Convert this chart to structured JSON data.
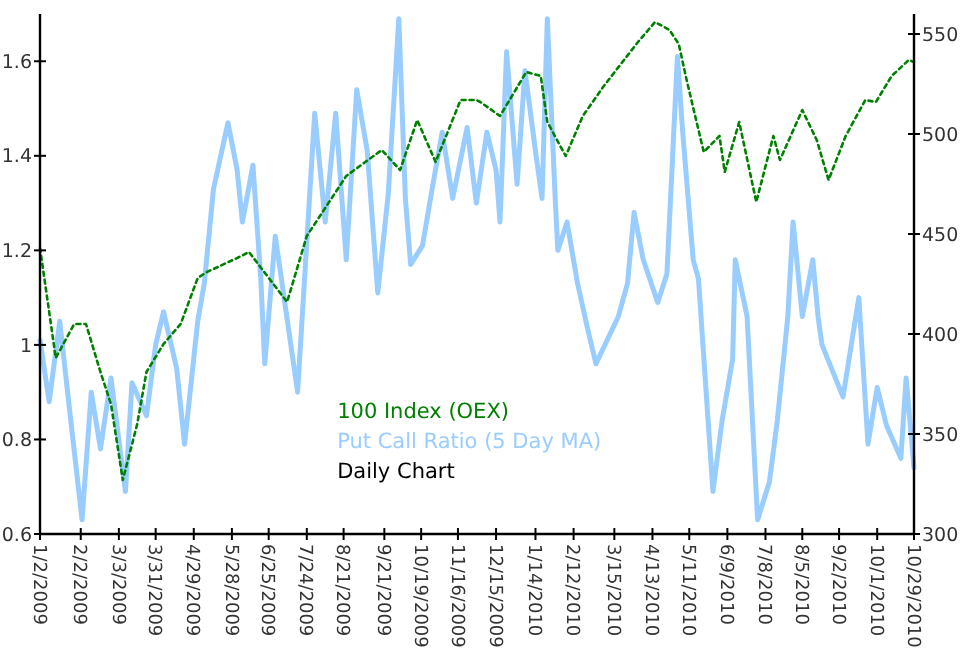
{
  "chart_data": {
    "type": "line",
    "legend": "bottom",
    "annotations": [
      "Daily Chart"
    ],
    "xlim": [
      "2009-01-02",
      "2010-10-29"
    ],
    "xticks": [
      {
        "value": "2009-01-02",
        "label": "1/2/2009"
      },
      {
        "value": "2009-02-02",
        "label": "2/2/2009"
      },
      {
        "value": "2009-03-03",
        "label": "3/3/2009"
      },
      {
        "value": "2009-03-31",
        "label": "3/31/2009"
      },
      {
        "value": "2009-04-29",
        "label": "4/29/2009"
      },
      {
        "value": "2009-05-28",
        "label": "5/28/2009"
      },
      {
        "value": "2009-06-25",
        "label": "6/25/2009"
      },
      {
        "value": "2009-07-24",
        "label": "7/24/2009"
      },
      {
        "value": "2009-08-21",
        "label": "8/21/2009"
      },
      {
        "value": "2009-09-21",
        "label": "9/21/2009"
      },
      {
        "value": "2009-10-19",
        "label": "10/19/2009"
      },
      {
        "value": "2009-11-16",
        "label": "11/16/2009"
      },
      {
        "value": "2009-12-15",
        "label": "12/15/2009"
      },
      {
        "value": "2010-01-14",
        "label": "1/14/2010"
      },
      {
        "value": "2010-02-12",
        "label": "2/12/2010"
      },
      {
        "value": "2010-03-15",
        "label": "3/15/2010"
      },
      {
        "value": "2010-04-13",
        "label": "4/13/2010"
      },
      {
        "value": "2010-05-11",
        "label": "5/11/2010"
      },
      {
        "value": "2010-06-09",
        "label": "6/9/2010"
      },
      {
        "value": "2010-07-08",
        "label": "7/8/2010"
      },
      {
        "value": "2010-08-05",
        "label": "8/5/2010"
      },
      {
        "value": "2010-09-02",
        "label": "9/2/2010"
      },
      {
        "value": "2010-10-01",
        "label": "10/1/2010"
      },
      {
        "value": "2010-10-29",
        "label": "10/29/2010"
      }
    ],
    "ylim": [
      0.6,
      1.7
    ],
    "yticks": [
      0.6,
      0.8,
      {
        "value": 1,
        "label": "1"
      },
      1.2,
      1.4,
      1.6
    ],
    "y2lim": [
      300,
      560
    ],
    "y2ticks": [
      300,
      350,
      400,
      450,
      500,
      550
    ],
    "series": [
      {
        "name": "Put Call Ratio (5 Day MA)",
        "color": "#99ccff",
        "line_style": "solid",
        "x": [
          "2009-01-02",
          "2009-01-09",
          "2009-01-17",
          "2009-01-25",
          "2009-02-03",
          "2009-02-10",
          "2009-02-17",
          "2009-02-25",
          "2009-03-08",
          "2009-03-13",
          "2009-03-24",
          "2009-03-31",
          "2009-04-06",
          "2009-04-16",
          "2009-04-22",
          "2009-05-02",
          "2009-05-07",
          "2009-05-14",
          "2009-05-25",
          "2009-06-01",
          "2009-06-05",
          "2009-06-13",
          "2009-06-19",
          "2009-06-22",
          "2009-06-30",
          "2009-07-17",
          "2009-07-30",
          "2009-08-07",
          "2009-08-15",
          "2009-08-23",
          "2009-08-31",
          "2009-09-08",
          "2009-09-16",
          "2009-09-24",
          "2009-10-02",
          "2009-10-07",
          "2009-10-11",
          "2009-10-20",
          "2009-10-28",
          "2009-11-04",
          "2009-11-12",
          "2009-11-23",
          "2009-11-30",
          "2009-12-08",
          "2009-12-15",
          "2009-12-18",
          "2009-12-23",
          "2009-12-31",
          "2010-01-06",
          "2010-01-14",
          "2010-01-19",
          "2010-01-23",
          "2010-01-29",
          "2010-01-31",
          "2010-02-07",
          "2010-02-15",
          "2010-02-23",
          "2010-03-01",
          "2010-03-18",
          "2010-03-25",
          "2010-03-30",
          "2010-04-06",
          "2010-04-17",
          "2010-04-24",
          "2010-05-02",
          "2010-05-06",
          "2010-05-14",
          "2010-05-18",
          "2010-05-29",
          "2010-06-05",
          "2010-06-13",
          "2010-06-15",
          "2010-06-24",
          "2010-07-02",
          "2010-07-11",
          "2010-07-17",
          "2010-07-25",
          "2010-07-29",
          "2010-08-05",
          "2010-08-13",
          "2010-08-17",
          "2010-08-20",
          "2010-09-05",
          "2010-09-17",
          "2010-09-24",
          "2010-10-01",
          "2010-10-08",
          "2010-10-19",
          "2010-10-23",
          "2010-10-29"
        ],
        "values": [
          1.01,
          0.88,
          1.05,
          0.85,
          0.63,
          0.9,
          0.78,
          0.93,
          0.69,
          0.92,
          0.85,
          1.0,
          1.07,
          0.95,
          0.79,
          1.05,
          1.13,
          1.33,
          1.47,
          1.37,
          1.26,
          1.38,
          1.14,
          0.96,
          1.23,
          0.9,
          1.49,
          1.26,
          1.49,
          1.18,
          1.54,
          1.41,
          1.11,
          1.32,
          1.69,
          1.31,
          1.17,
          1.21,
          1.34,
          1.45,
          1.31,
          1.46,
          1.3,
          1.45,
          1.37,
          1.26,
          1.62,
          1.34,
          1.58,
          1.41,
          1.31,
          1.69,
          1.31,
          1.2,
          1.26,
          1.13,
          1.03,
          0.96,
          1.06,
          1.13,
          1.28,
          1.18,
          1.09,
          1.15,
          1.61,
          1.45,
          1.18,
          1.14,
          0.69,
          0.84,
          0.97,
          1.18,
          1.06,
          0.63,
          0.71,
          0.84,
          1.06,
          1.26,
          1.06,
          1.18,
          1.06,
          1.0,
          0.89,
          1.1,
          0.79,
          0.91,
          0.83,
          0.76,
          0.93,
          0.74
        ]
      },
      {
        "name": "100 Index (OEX)",
        "color": "#008000",
        "axis": "y2",
        "line_style": "dotted",
        "x": [
          "2009-01-02",
          "2009-01-14",
          "2009-01-28",
          "2009-02-06",
          "2009-02-17",
          "2009-02-25",
          "2009-03-06",
          "2009-03-17",
          "2009-03-24",
          "2009-04-06",
          "2009-04-19",
          "2009-05-02",
          "2009-05-09",
          "2009-06-01",
          "2009-06-10",
          "2009-07-09",
          "2009-07-24",
          "2009-08-23",
          "2009-09-19",
          "2009-10-03",
          "2009-10-16",
          "2009-10-30",
          "2009-11-18",
          "2009-11-30",
          "2009-12-03",
          "2009-12-18",
          "2010-01-07",
          "2010-01-18",
          "2010-01-23",
          "2010-02-06",
          "2010-02-19",
          "2010-03-07",
          "2010-04-02",
          "2010-04-15",
          "2010-04-26",
          "2010-05-03",
          "2010-05-09",
          "2010-05-22",
          "2010-06-03",
          "2010-06-07",
          "2010-06-18",
          "2010-07-01",
          "2010-07-14",
          "2010-07-19",
          "2010-08-05",
          "2010-08-16",
          "2010-08-25",
          "2010-09-07",
          "2010-09-22",
          "2010-09-30",
          "2010-10-12",
          "2010-10-25",
          "2010-10-29"
        ],
        "values": [
          443,
          388,
          405,
          405,
          381,
          365,
          327,
          355,
          381,
          395,
          405,
          428,
          431,
          438,
          441,
          416,
          449,
          479,
          492,
          482,
          507,
          486,
          517,
          517,
          516,
          509,
          531,
          529,
          506,
          489,
          509,
          524,
          546,
          556,
          552,
          545,
          527,
          491,
          499,
          481,
          506,
          466,
          499,
          487,
          512,
          497,
          477,
          499,
          517,
          516,
          529,
          537,
          536
        ]
      }
    ]
  }
}
